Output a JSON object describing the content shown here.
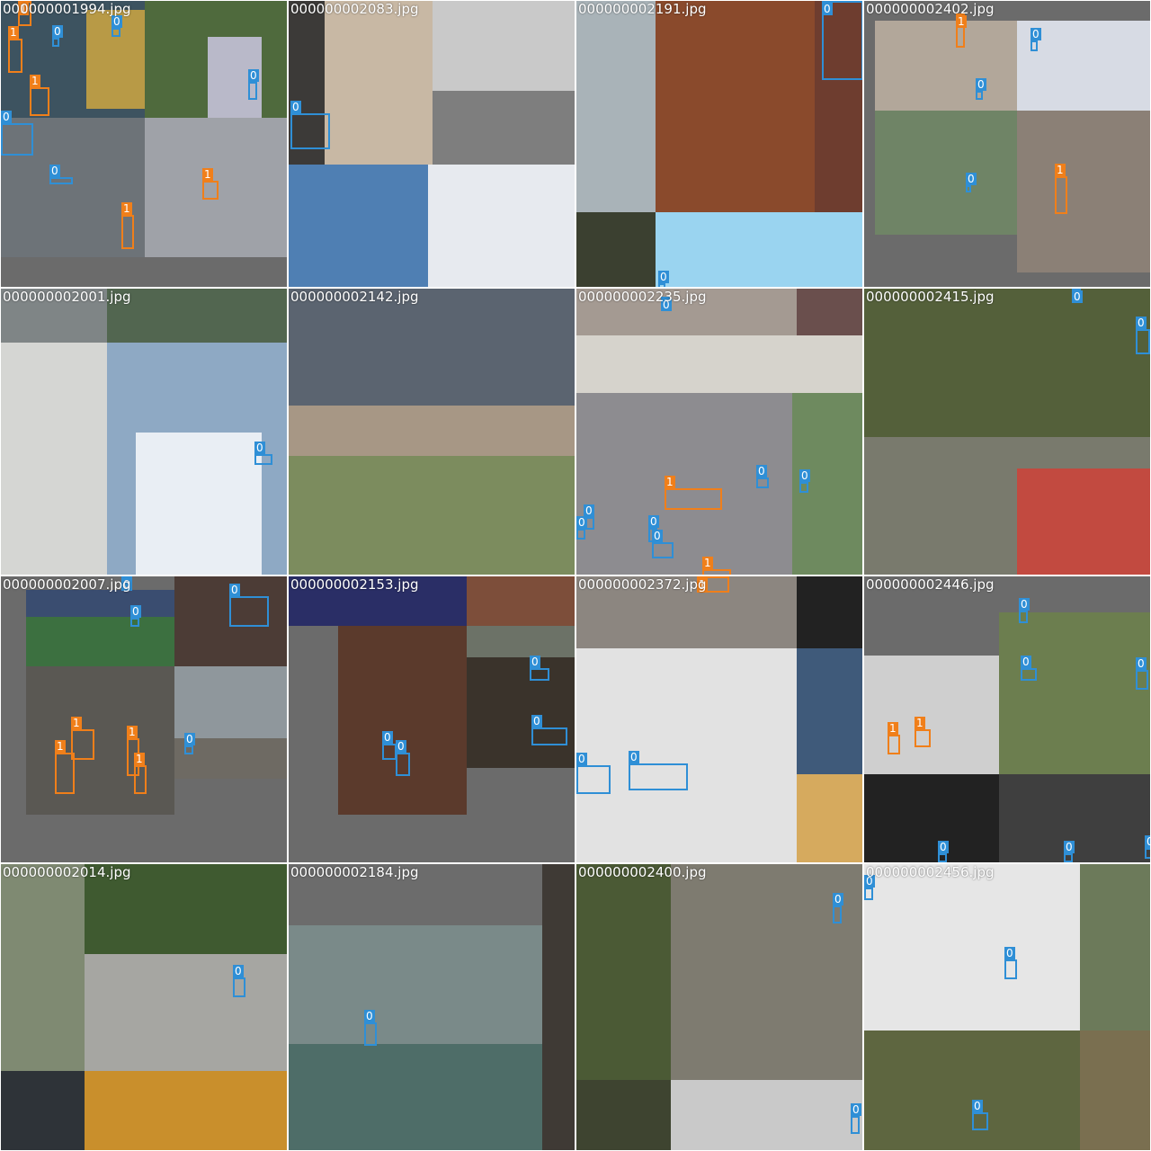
{
  "colors": {
    "class_0": "#2f8fd6",
    "class_1": "#f07f1a"
  },
  "tiles": [
    {
      "filename": "000000001994.jpg",
      "patches": [
        {
          "l": 0,
          "t": 0,
          "w": 160,
          "h": 130,
          "c": "#3d5360"
        },
        {
          "l": 95,
          "t": 10,
          "w": 65,
          "h": 110,
          "c": "#b89a46"
        },
        {
          "l": 160,
          "t": 0,
          "w": 160,
          "h": 130,
          "c": "#4f6a3d"
        },
        {
          "l": 230,
          "t": 40,
          "w": 60,
          "h": 90,
          "c": "#b9b9c9"
        },
        {
          "l": 0,
          "t": 130,
          "w": 160,
          "h": 155,
          "c": "#6d7378"
        },
        {
          "l": 160,
          "t": 130,
          "w": 160,
          "h": 155,
          "c": "#9fa2a8"
        },
        {
          "l": 0,
          "t": 285,
          "w": 320,
          "h": 35,
          "c": "#6b6b6b"
        }
      ],
      "boxes": [
        {
          "l": 19,
          "t": 0,
          "w": 15,
          "h": 28,
          "cls": "1"
        },
        {
          "l": 8,
          "t": 42,
          "w": 16,
          "h": 38,
          "cls": "1"
        },
        {
          "l": 57,
          "t": 41,
          "w": 8,
          "h": 10,
          "cls": "0"
        },
        {
          "l": 123,
          "t": 30,
          "w": 10,
          "h": 10,
          "cls": "0"
        },
        {
          "l": 32,
          "t": 96,
          "w": 22,
          "h": 32,
          "cls": "1"
        },
        {
          "l": 0,
          "t": 136,
          "w": 36,
          "h": 36,
          "cls": "0"
        },
        {
          "l": 275,
          "t": 90,
          "w": 10,
          "h": 20,
          "cls": "0"
        },
        {
          "l": 54,
          "t": 196,
          "w": 26,
          "h": 8,
          "cls": "0"
        },
        {
          "l": 224,
          "t": 200,
          "w": 18,
          "h": 21,
          "cls": "1"
        },
        {
          "l": 134,
          "t": 238,
          "w": 14,
          "h": 38,
          "cls": "1"
        }
      ]
    },
    {
      "filename": "000000002083.jpg",
      "patches": [
        {
          "l": 0,
          "t": 0,
          "w": 160,
          "h": 182,
          "c": "#3c3a38"
        },
        {
          "l": 40,
          "t": 0,
          "w": 120,
          "h": 182,
          "c": "#c8b8a4"
        },
        {
          "l": 160,
          "t": 0,
          "w": 160,
          "h": 182,
          "c": "#c9c9c9"
        },
        {
          "l": 160,
          "t": 100,
          "w": 160,
          "h": 82,
          "c": "#7e7e7e"
        },
        {
          "l": 0,
          "t": 182,
          "w": 155,
          "h": 138,
          "c": "#4f7fb3"
        },
        {
          "l": 155,
          "t": 182,
          "w": 165,
          "h": 138,
          "c": "#e7eaef"
        }
      ],
      "boxes": [
        {
          "l": 2,
          "t": 125,
          "w": 44,
          "h": 40,
          "cls": "0"
        }
      ]
    },
    {
      "filename": "000000002191.jpg",
      "patches": [
        {
          "l": 0,
          "t": 0,
          "w": 88,
          "h": 235,
          "c": "#a9b3b8"
        },
        {
          "l": 88,
          "t": 0,
          "w": 232,
          "h": 235,
          "c": "#8a4a2c"
        },
        {
          "l": 265,
          "t": 0,
          "w": 55,
          "h": 235,
          "c": "#6e3d2f"
        },
        {
          "l": 0,
          "t": 235,
          "w": 88,
          "h": 85,
          "c": "#3b4030"
        },
        {
          "l": 88,
          "t": 235,
          "w": 232,
          "h": 85,
          "c": "#9ad4f0"
        }
      ],
      "boxes": [
        {
          "l": 273,
          "t": 0,
          "w": 46,
          "h": 88,
          "cls": "0"
        },
        {
          "l": 91,
          "t": 314,
          "w": 8,
          "h": 6,
          "cls": "0"
        }
      ]
    },
    {
      "filename": "000000002402.jpg",
      "patches": [
        {
          "l": 0,
          "t": 0,
          "w": 12,
          "h": 320,
          "c": "#6b6b6b"
        },
        {
          "l": 12,
          "t": 22,
          "w": 158,
          "h": 100,
          "c": "#b2a79a"
        },
        {
          "l": 170,
          "t": 22,
          "w": 150,
          "h": 100,
          "c": "#d7dbe4"
        },
        {
          "l": 12,
          "t": 122,
          "w": 158,
          "h": 138,
          "c": "#6f8466"
        },
        {
          "l": 170,
          "t": 122,
          "w": 150,
          "h": 180,
          "c": "#8b8076"
        },
        {
          "l": 12,
          "t": 260,
          "w": 158,
          "h": 60,
          "c": "#6b6b6b"
        }
      ],
      "boxes": [
        {
          "l": 102,
          "t": 14,
          "w": 10,
          "h": 38,
          "cls": "1"
        },
        {
          "l": 185,
          "t": 44,
          "w": 8,
          "h": 12,
          "cls": "0"
        },
        {
          "l": 124,
          "t": 100,
          "w": 8,
          "h": 10,
          "cls": "0"
        },
        {
          "l": 113,
          "t": 205,
          "w": 6,
          "h": 8,
          "cls": "0"
        },
        {
          "l": 212,
          "t": 195,
          "w": 14,
          "h": 42,
          "cls": "1"
        }
      ]
    },
    {
      "filename": "000000002001.jpg",
      "patches": [
        {
          "l": 0,
          "t": 0,
          "w": 118,
          "h": 60,
          "c": "#7f8586"
        },
        {
          "l": 118,
          "t": 0,
          "w": 202,
          "h": 60,
          "c": "#526650"
        },
        {
          "l": 0,
          "t": 60,
          "w": 118,
          "h": 260,
          "c": "#d5d6d3"
        },
        {
          "l": 118,
          "t": 60,
          "w": 202,
          "h": 260,
          "c": "#8ea9c4"
        },
        {
          "l": 150,
          "t": 160,
          "w": 140,
          "h": 160,
          "c": "#e9eef4"
        }
      ],
      "boxes": [
        {
          "l": 282,
          "t": 184,
          "w": 20,
          "h": 12,
          "cls": "0"
        }
      ]
    },
    {
      "filename": "000000002142.jpg",
      "patches": [
        {
          "l": 0,
          "t": 0,
          "w": 320,
          "h": 186,
          "c": "#5b6470"
        },
        {
          "l": 0,
          "t": 130,
          "w": 320,
          "h": 56,
          "c": "#a79785"
        },
        {
          "l": 0,
          "t": 186,
          "w": 320,
          "h": 134,
          "c": "#7c8c5e"
        }
      ],
      "boxes": []
    },
    {
      "filename": "000000002235.jpg",
      "patches": [
        {
          "l": 0,
          "t": 0,
          "w": 245,
          "h": 52,
          "c": "#a49a92"
        },
        {
          "l": 245,
          "t": 0,
          "w": 75,
          "h": 52,
          "c": "#6a4f4d"
        },
        {
          "l": 0,
          "t": 52,
          "w": 320,
          "h": 64,
          "c": "#d6d3cc"
        },
        {
          "l": 0,
          "t": 116,
          "w": 320,
          "h": 204,
          "c": "#8d8c90"
        },
        {
          "l": 240,
          "t": 116,
          "w": 80,
          "h": 204,
          "c": "#6e8a5f"
        }
      ],
      "boxes": [
        {
          "l": 94,
          "t": 9,
          "w": 10,
          "h": 12,
          "cls": "0"
        },
        {
          "l": 98,
          "t": 222,
          "w": 64,
          "h": 24,
          "cls": "1"
        },
        {
          "l": 200,
          "t": 210,
          "w": 14,
          "h": 12,
          "cls": "0"
        },
        {
          "l": 248,
          "t": 215,
          "w": 10,
          "h": 12,
          "cls": "0"
        },
        {
          "l": 8,
          "t": 254,
          "w": 12,
          "h": 14,
          "cls": "0"
        },
        {
          "l": 0,
          "t": 267,
          "w": 10,
          "h": 12,
          "cls": "0"
        },
        {
          "l": 80,
          "t": 266,
          "w": 10,
          "h": 16,
          "cls": "0"
        },
        {
          "l": 84,
          "t": 282,
          "w": 24,
          "h": 18,
          "cls": "0"
        },
        {
          "l": 140,
          "t": 312,
          "w": 32,
          "h": 8,
          "cls": "1"
        }
      ]
    },
    {
      "filename": "000000002415.jpg",
      "patches": [
        {
          "l": 0,
          "t": 0,
          "w": 320,
          "h": 165,
          "c": "#54603a"
        },
        {
          "l": 0,
          "t": 165,
          "w": 320,
          "h": 155,
          "c": "#797a6d"
        },
        {
          "l": 170,
          "t": 200,
          "w": 150,
          "h": 120,
          "c": "#c24a40"
        }
      ],
      "boxes": [
        {
          "l": 231,
          "t": 0,
          "w": 10,
          "h": 10,
          "cls": "0"
        },
        {
          "l": 302,
          "t": 45,
          "w": 16,
          "h": 28,
          "cls": "0"
        }
      ]
    },
    {
      "filename": "000000002007.jpg",
      "patches": [
        {
          "l": 0,
          "t": 0,
          "w": 28,
          "h": 320,
          "c": "#6b6b6b"
        },
        {
          "l": 28,
          "t": 15,
          "w": 165,
          "h": 85,
          "c": "#3c7040"
        },
        {
          "l": 28,
          "t": 15,
          "w": 165,
          "h": 30,
          "c": "#3a4d70"
        },
        {
          "l": 193,
          "t": 0,
          "w": 127,
          "h": 100,
          "c": "#4c3c36"
        },
        {
          "l": 28,
          "t": 100,
          "w": 165,
          "h": 165,
          "c": "#5a5853"
        },
        {
          "l": 193,
          "t": 100,
          "w": 127,
          "h": 125,
          "c": "#8f979c"
        },
        {
          "l": 193,
          "t": 180,
          "w": 127,
          "h": 45,
          "c": "#6e6a63"
        }
      ],
      "boxes": [
        {
          "l": 134,
          "t": 0,
          "w": 12,
          "h": 10,
          "cls": "0"
        },
        {
          "l": 144,
          "t": 46,
          "w": 10,
          "h": 10,
          "cls": "0"
        },
        {
          "l": 254,
          "t": 22,
          "w": 44,
          "h": 34,
          "cls": "0"
        },
        {
          "l": 78,
          "t": 170,
          "w": 26,
          "h": 34,
          "cls": "1"
        },
        {
          "l": 140,
          "t": 180,
          "w": 14,
          "h": 42,
          "cls": "1"
        },
        {
          "l": 60,
          "t": 196,
          "w": 22,
          "h": 46,
          "cls": "1"
        },
        {
          "l": 148,
          "t": 210,
          "w": 14,
          "h": 32,
          "cls": "1"
        },
        {
          "l": 204,
          "t": 188,
          "w": 10,
          "h": 10,
          "cls": "0"
        }
      ]
    },
    {
      "filename": "000000002153.jpg",
      "patches": [
        {
          "l": 0,
          "t": 0,
          "w": 198,
          "h": 55,
          "c": "#2a2e66"
        },
        {
          "l": 198,
          "t": 0,
          "w": 122,
          "h": 55,
          "c": "#7d4e3a"
        },
        {
          "l": 55,
          "t": 55,
          "w": 143,
          "h": 210,
          "c": "#5b3a2c"
        },
        {
          "l": 198,
          "t": 55,
          "w": 122,
          "h": 158,
          "c": "#6c7267"
        },
        {
          "l": 198,
          "t": 90,
          "w": 122,
          "h": 123,
          "c": "#3a332b"
        }
      ],
      "boxes": [
        {
          "l": 104,
          "t": 186,
          "w": 16,
          "h": 18,
          "cls": "0"
        },
        {
          "l": 119,
          "t": 196,
          "w": 16,
          "h": 26,
          "cls": "0"
        },
        {
          "l": 268,
          "t": 102,
          "w": 22,
          "h": 14,
          "cls": "0"
        },
        {
          "l": 270,
          "t": 168,
          "w": 40,
          "h": 20,
          "cls": "0"
        }
      ]
    },
    {
      "filename": "000000002372.jpg",
      "patches": [
        {
          "l": 0,
          "t": 0,
          "w": 245,
          "h": 80,
          "c": "#8c8680"
        },
        {
          "l": 245,
          "t": 0,
          "w": 75,
          "h": 80,
          "c": "#222222"
        },
        {
          "l": 0,
          "t": 80,
          "w": 245,
          "h": 240,
          "c": "#e2e2e2"
        },
        {
          "l": 245,
          "t": 80,
          "w": 75,
          "h": 140,
          "c": "#3f5a7a"
        },
        {
          "l": 245,
          "t": 220,
          "w": 75,
          "h": 100,
          "c": "#d6aa5e"
        }
      ],
      "boxes": [
        {
          "l": 134,
          "t": 0,
          "w": 36,
          "h": 18,
          "cls": "1"
        },
        {
          "l": 0,
          "t": 210,
          "w": 38,
          "h": 32,
          "cls": "0"
        },
        {
          "l": 58,
          "t": 208,
          "w": 66,
          "h": 30,
          "cls": "0"
        }
      ]
    },
    {
      "filename": "000000002446.jpg",
      "patches": [
        {
          "l": 0,
          "t": 0,
          "w": 150,
          "h": 320,
          "c": "#6b6b6b"
        },
        {
          "l": 0,
          "t": 88,
          "w": 150,
          "h": 132,
          "c": "#cfcfcf"
        },
        {
          "l": 150,
          "t": 40,
          "w": 170,
          "h": 180,
          "c": "#6c7e4f"
        },
        {
          "l": 0,
          "t": 220,
          "w": 150,
          "h": 100,
          "c": "#222222"
        },
        {
          "l": 150,
          "t": 220,
          "w": 170,
          "h": 100,
          "c": "#3f3f3f"
        }
      ],
      "boxes": [
        {
          "l": 172,
          "t": 38,
          "w": 10,
          "h": 14,
          "cls": "0"
        },
        {
          "l": 174,
          "t": 102,
          "w": 18,
          "h": 14,
          "cls": "0"
        },
        {
          "l": 302,
          "t": 104,
          "w": 14,
          "h": 22,
          "cls": "0"
        },
        {
          "l": 26,
          "t": 176,
          "w": 14,
          "h": 22,
          "cls": "1"
        },
        {
          "l": 56,
          "t": 170,
          "w": 18,
          "h": 20,
          "cls": "1"
        },
        {
          "l": 82,
          "t": 308,
          "w": 10,
          "h": 10,
          "cls": "0"
        },
        {
          "l": 222,
          "t": 308,
          "w": 10,
          "h": 10,
          "cls": "0"
        },
        {
          "l": 312,
          "t": 302,
          "w": 8,
          "h": 12,
          "cls": "0"
        }
      ]
    },
    {
      "filename": "000000002014.jpg",
      "patches": [
        {
          "l": 0,
          "t": 0,
          "w": 93,
          "h": 230,
          "c": "#7f8a72"
        },
        {
          "l": 93,
          "t": 0,
          "w": 227,
          "h": 100,
          "c": "#3f5a30"
        },
        {
          "l": 93,
          "t": 100,
          "w": 227,
          "h": 130,
          "c": "#a6a6a2"
        },
        {
          "l": 0,
          "t": 230,
          "w": 93,
          "h": 90,
          "c": "#2e3338"
        },
        {
          "l": 93,
          "t": 230,
          "w": 227,
          "h": 90,
          "c": "#c98f2c"
        }
      ],
      "boxes": [
        {
          "l": 258,
          "t": 126,
          "w": 14,
          "h": 22,
          "cls": "0"
        }
      ]
    },
    {
      "filename": "000000002184.jpg",
      "patches": [
        {
          "l": 0,
          "t": 0,
          "w": 282,
          "h": 68,
          "c": "#6c6c6c"
        },
        {
          "l": 282,
          "t": 0,
          "w": 38,
          "h": 320,
          "c": "#3f3a35"
        },
        {
          "l": 0,
          "t": 68,
          "w": 282,
          "h": 252,
          "c": "#7a8a89"
        },
        {
          "l": 0,
          "t": 200,
          "w": 282,
          "h": 120,
          "c": "#4e6d68"
        }
      ],
      "boxes": [
        {
          "l": 84,
          "t": 176,
          "w": 14,
          "h": 26,
          "cls": "0"
        }
      ]
    },
    {
      "filename": "000000002400.jpg",
      "patches": [
        {
          "l": 0,
          "t": 0,
          "w": 105,
          "h": 240,
          "c": "#4b5a35"
        },
        {
          "l": 105,
          "t": 0,
          "w": 215,
          "h": 240,
          "c": "#7e7b70"
        },
        {
          "l": 0,
          "t": 240,
          "w": 105,
          "h": 80,
          "c": "#3e4430"
        },
        {
          "l": 105,
          "t": 240,
          "w": 215,
          "h": 80,
          "c": "#c9c9c9"
        }
      ],
      "boxes": [
        {
          "l": 285,
          "t": 46,
          "w": 10,
          "h": 20,
          "cls": "0"
        },
        {
          "l": 305,
          "t": 280,
          "w": 10,
          "h": 20,
          "cls": "0"
        }
      ]
    },
    {
      "filename": "000000002456.jpg",
      "patches": [
        {
          "l": 0,
          "t": 0,
          "w": 240,
          "h": 185,
          "c": "#e6e6e6"
        },
        {
          "l": 240,
          "t": 0,
          "w": 80,
          "h": 185,
          "c": "#6c7a5a"
        },
        {
          "l": 0,
          "t": 185,
          "w": 240,
          "h": 135,
          "c": "#5e6640"
        },
        {
          "l": 240,
          "t": 185,
          "w": 80,
          "h": 135,
          "c": "#7a6f50"
        }
      ],
      "boxes": [
        {
          "l": 0,
          "t": 26,
          "w": 10,
          "h": 14,
          "cls": "0"
        },
        {
          "l": 156,
          "t": 106,
          "w": 14,
          "h": 22,
          "cls": "0"
        },
        {
          "l": 120,
          "t": 276,
          "w": 18,
          "h": 20,
          "cls": "0"
        }
      ]
    }
  ]
}
